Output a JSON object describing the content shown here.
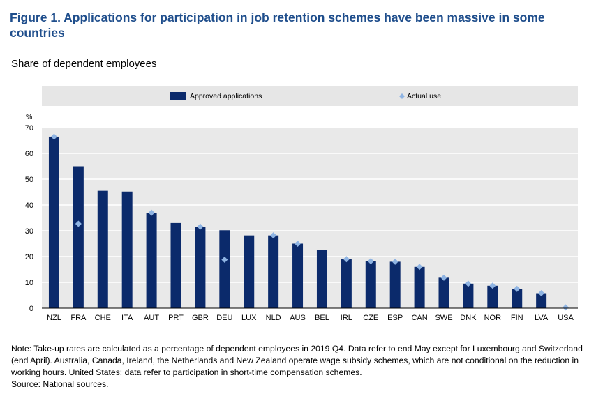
{
  "figure": {
    "title": "Figure 1. Applications for participation in job retention schemes have been massive in some countries",
    "subtitle": "Share of dependent employees"
  },
  "notes": {
    "note": "Note: Take-up rates are calculated as a percentage of dependent employees in 2019 Q4. Data refer to end May except for Luxembourg and Switzerland (end April). Australia, Canada, Ireland, the Netherlands and New Zealand operate wage subsidy schemes, which are not conditional on the reduction in working hours. United States: data refer to participation in short-time compensation schemes.",
    "source": "Source: National sources."
  },
  "colors": {
    "bar": "#0b2a6b",
    "marker": "#8fb4e3",
    "legend_bg": "#e6e6e6",
    "plot_bg": "#e9e9e9",
    "grid": "#ffffff"
  },
  "chart_data": {
    "type": "bar",
    "ylabel": "%",
    "ylim": [
      0,
      70
    ],
    "yticks": [
      0,
      10,
      20,
      30,
      40,
      50,
      60,
      70
    ],
    "grid": true,
    "legend_position": "top",
    "categories": [
      "NZL",
      "FRA",
      "CHE",
      "ITA",
      "AUT",
      "PRT",
      "GBR",
      "DEU",
      "LUX",
      "NLD",
      "AUS",
      "BEL",
      "IRL",
      "CZE",
      "ESP",
      "CAN",
      "SWE",
      "DNK",
      "NOR",
      "FIN",
      "LVA",
      "USA"
    ],
    "series": [
      {
        "name": "Approved applications",
        "kind": "bar",
        "values": [
          66.5,
          55,
          45.5,
          45.2,
          37,
          33,
          31.6,
          30.2,
          28.2,
          28.2,
          25,
          22.5,
          19,
          18.2,
          18,
          16,
          11.8,
          9.5,
          8.7,
          7.5,
          5.8,
          null
        ]
      },
      {
        "name": "Actual use",
        "kind": "marker",
        "values": [
          66.5,
          32.7,
          null,
          null,
          37,
          null,
          31.6,
          18.8,
          null,
          28.2,
          25,
          null,
          19,
          18.2,
          18,
          16,
          11.8,
          9.5,
          8.7,
          7.5,
          5.8,
          0.3
        ]
      }
    ]
  }
}
